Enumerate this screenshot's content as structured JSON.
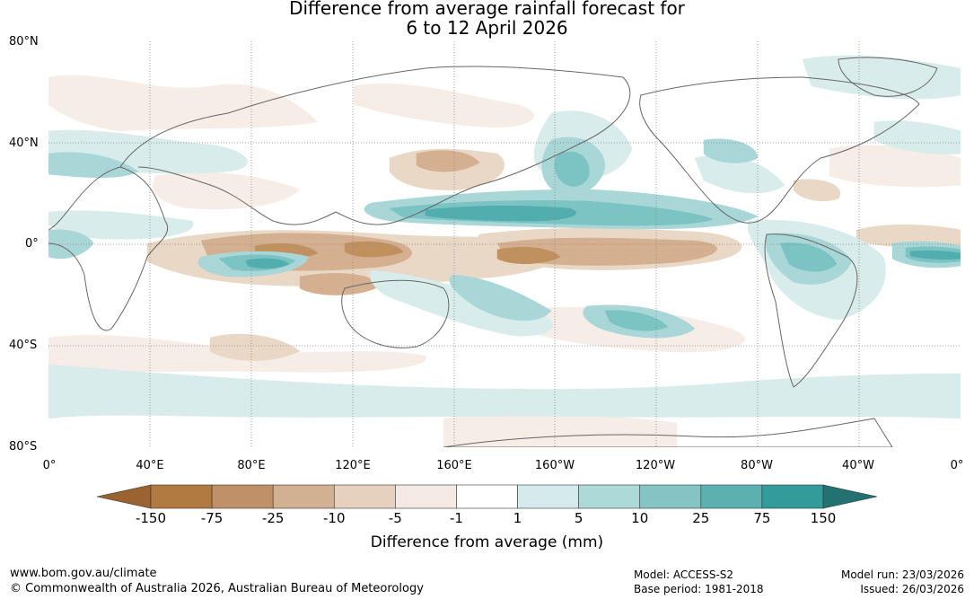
{
  "title": {
    "line1": "Difference from average rainfall forecast for",
    "line2": "6 to 12 April 2026"
  },
  "map": {
    "lat_labels": [
      "80°N",
      "40°N",
      "0°",
      "40°S",
      "80°S"
    ],
    "lon_labels": [
      "0°",
      "40°E",
      "80°E",
      "120°E",
      "160°E",
      "160°W",
      "120°W",
      "80°W",
      "40°W",
      "0°"
    ],
    "colors": {
      "dry_strong": "#c0905f",
      "dry_moderate": "#d4b090",
      "dry_light": "#e9d8c6",
      "dry_faint": "#f6ede6",
      "wet_faint": "#d9ecec",
      "wet_light": "#a9d6d6",
      "wet_moderate": "#7cc3c3",
      "wet_strong": "#52aeae",
      "coast": "#666666",
      "grid": "#888888"
    }
  },
  "colorbar": {
    "ticks": [
      "-150",
      "-75",
      "-25",
      "-10",
      "-5",
      "-1",
      "1",
      "5",
      "10",
      "25",
      "75",
      "150"
    ],
    "colors": [
      "#9b6330",
      "#b17a41",
      "#c09168",
      "#d2b192",
      "#e6d1bf",
      "#f4eae3",
      "#ffffff",
      "#d5eaea",
      "#add9d9",
      "#85c4c4",
      "#5cb0b0",
      "#349b9b",
      "#227272"
    ],
    "title": "Difference from average (mm)"
  },
  "footer": {
    "website": "www.bom.gov.au/climate",
    "copyright": "© Commonwealth of Australia 2026, Australian Bureau of Meteorology",
    "model": "Model: ACCESS-S2",
    "base_period": "Base period: 1981-2018",
    "model_run": "Model run: 23/03/2026",
    "issued": "Issued: 26/03/2026"
  }
}
